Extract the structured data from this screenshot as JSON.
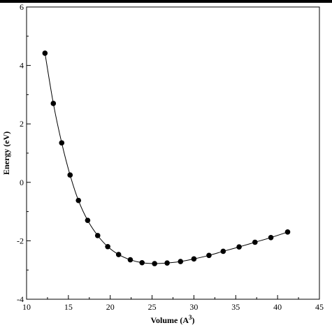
{
  "chart_data": {
    "type": "line",
    "title": "",
    "xlabel": "Volume (A",
    "xlabel_sup": "3",
    "xlabel_end": ")",
    "ylabel": "Energy (eV)",
    "xlim": [
      10,
      45
    ],
    "ylim": [
      -4,
      6
    ],
    "xticks": [
      10,
      15,
      20,
      25,
      30,
      35,
      40,
      45
    ],
    "yticks": [
      -4,
      -2,
      0,
      2,
      4,
      6
    ],
    "xtick_labels": [
      "10",
      "15",
      "20",
      "25",
      "30",
      "35",
      "40",
      "45"
    ],
    "ytick_labels": [
      "-4",
      "-2",
      "0",
      "2",
      "4",
      "6"
    ],
    "grid": false,
    "legend": "none",
    "marker_color": "#000000",
    "line_color": "#000000",
    "series": [
      {
        "x": [
          12.2,
          13.2,
          14.2,
          15.2,
          16.2,
          17.3,
          18.5,
          19.7,
          21.0,
          22.4,
          23.8,
          25.3,
          26.8,
          28.4,
          30.0,
          31.8,
          33.5,
          35.4,
          37.3,
          39.2,
          41.2
        ],
        "y": [
          4.42,
          2.7,
          1.35,
          0.25,
          -0.62,
          -1.3,
          -1.82,
          -2.2,
          -2.47,
          -2.65,
          -2.75,
          -2.78,
          -2.76,
          -2.71,
          -2.62,
          -2.5,
          -2.36,
          -2.21,
          -2.05,
          -1.89,
          -1.7
        ]
      }
    ]
  }
}
